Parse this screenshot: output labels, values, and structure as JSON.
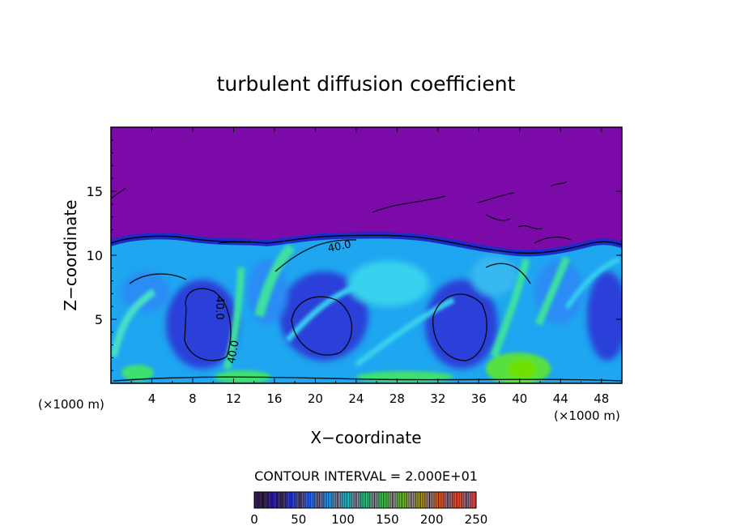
{
  "chart_data": {
    "type": "heatmap",
    "title": "turbulent diffusion coefficient",
    "xlabel": "X−coordinate",
    "ylabel": "Z−coordinate",
    "x_unit_left": "(×1000 m)",
    "x_unit_right": "(×1000 m)",
    "xlim": [
      0,
      50
    ],
    "ylim": [
      0,
      20
    ],
    "x_ticks": [
      "4",
      "8",
      "12",
      "16",
      "20",
      "24",
      "28",
      "32",
      "36",
      "40",
      "44",
      "48"
    ],
    "y_ticks": [
      "5",
      "10",
      "15"
    ],
    "contour_interval_text": "CONTOUR INTERVAL = 2.000E+01",
    "contour_labels": [
      "40.0",
      "40.0",
      "40.0"
    ],
    "colorbar": {
      "min": 0,
      "max": 250,
      "tick_labels": [
        "0",
        "50",
        "100",
        "150",
        "200",
        "250"
      ]
    },
    "colors": {
      "background_field": "#7b0aa8",
      "low": "#2a18c8",
      "mid": "#2a78ff",
      "cyan": "#38d2ee",
      "green": "#40e070",
      "lime": "#60e000"
    }
  }
}
